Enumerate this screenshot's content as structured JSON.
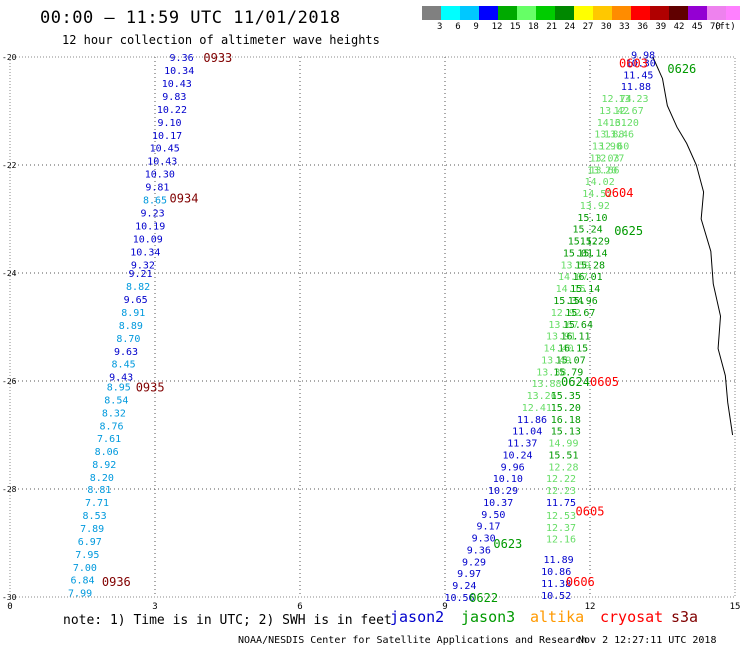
{
  "header": {
    "title": "00:00 — 11:59 UTC 11/01/2018",
    "subtitle": "12 hour collection of altimeter wave heights"
  },
  "colorbar": {
    "colors": [
      "#808080",
      "#00ffff",
      "#00c8ff",
      "#0000ff",
      "#00aa00",
      "#66ff66",
      "#00cc00",
      "#008800",
      "#ffff00",
      "#ffc800",
      "#ff8c00",
      "#ff0000",
      "#b00000",
      "#600000",
      "#9400d3",
      "#ee82ee",
      "#ff80ff",
      "#000000"
    ],
    "labels": [
      "3",
      "6",
      "9",
      "12",
      "15",
      "18",
      "21",
      "24",
      "27",
      "30",
      "33",
      "36",
      "39",
      "42",
      "45",
      "70"
    ],
    "unit": "(ft)"
  },
  "footer": {
    "note": "note: 1) Time is in UTC; 2) SWH is in feet",
    "credit": "NOAA/NESDIS Center for Satellite Applications and Research",
    "timestamp": "Nov  2 12:27:11 UTC 2018"
  },
  "legend": [
    {
      "name": "jason2",
      "color": "#0000cc"
    },
    {
      "name": "jason3",
      "color": "#009900"
    },
    {
      "name": "altika",
      "color": "#ff9900"
    },
    {
      "name": "cryosat",
      "color": "#ff0000"
    },
    {
      "name": "s3a",
      "color": "#800000"
    }
  ],
  "chart_data": {
    "type": "scatter",
    "xlim": [
      0,
      15
    ],
    "ylim": [
      -30,
      -20
    ],
    "xticks": [
      "0",
      "3",
      "6",
      "9",
      "12",
      "15"
    ],
    "yticks": [
      "-20",
      "-22",
      "-24",
      "-26",
      "-28",
      "-30"
    ],
    "grid": true,
    "tracks": [
      {
        "name": "s3a-west",
        "color": "#800000",
        "time_labels": [
          {
            "text": "0933",
            "x": 4.3,
            "y": -20.0
          },
          {
            "text": "0934",
            "x": 3.6,
            "y": -22.6
          },
          {
            "text": "0935",
            "x": 2.9,
            "y": -26.1
          },
          {
            "text": "0936",
            "x": 2.2,
            "y": -29.7
          }
        ],
        "points": [
          {
            "x": 3.55,
            "y": -20.0,
            "v": "9.36",
            "c": "#0000cc"
          },
          {
            "x": 3.5,
            "y": -20.24,
            "v": "10.34",
            "c": "#0000cc"
          },
          {
            "x": 3.45,
            "y": -20.48,
            "v": "10.43",
            "c": "#0000cc"
          },
          {
            "x": 3.4,
            "y": -20.72,
            "v": "9.83",
            "c": "#0000cc"
          },
          {
            "x": 3.35,
            "y": -20.96,
            "v": "10.22",
            "c": "#0000cc"
          },
          {
            "x": 3.3,
            "y": -21.2,
            "v": "9.10",
            "c": "#0000cc"
          },
          {
            "x": 3.25,
            "y": -21.44,
            "v": "10.17",
            "c": "#0000cc"
          },
          {
            "x": 3.2,
            "y": -21.68,
            "v": "10.45",
            "c": "#0000cc"
          },
          {
            "x": 3.15,
            "y": -21.92,
            "v": "10.43",
            "c": "#0000cc"
          },
          {
            "x": 3.1,
            "y": -22.16,
            "v": "10.30",
            "c": "#0000cc"
          },
          {
            "x": 3.05,
            "y": -22.4,
            "v": "9.81",
            "c": "#0000cc"
          },
          {
            "x": 3.0,
            "y": -22.64,
            "v": "8.65",
            "c": "#0099dd"
          },
          {
            "x": 2.95,
            "y": -22.88,
            "v": "9.23",
            "c": "#0000cc"
          },
          {
            "x": 2.9,
            "y": -23.12,
            "v": "10.19",
            "c": "#0000cc"
          },
          {
            "x": 2.85,
            "y": -23.36,
            "v": "10.09",
            "c": "#0000cc"
          },
          {
            "x": 2.8,
            "y": -23.6,
            "v": "10.34",
            "c": "#0000cc"
          },
          {
            "x": 2.75,
            "y": -23.84,
            "v": "9.32",
            "c": "#0000cc"
          },
          {
            "x": 2.7,
            "y": -24.0,
            "v": "9.21",
            "c": "#0000cc"
          },
          {
            "x": 2.65,
            "y": -24.24,
            "v": "8.82",
            "c": "#0099dd"
          },
          {
            "x": 2.6,
            "y": -24.48,
            "v": "9.65",
            "c": "#0000cc"
          },
          {
            "x": 2.55,
            "y": -24.72,
            "v": "8.91",
            "c": "#0099dd"
          },
          {
            "x": 2.5,
            "y": -24.96,
            "v": "8.89",
            "c": "#0099dd"
          },
          {
            "x": 2.45,
            "y": -25.2,
            "v": "8.70",
            "c": "#0099dd"
          },
          {
            "x": 2.4,
            "y": -25.44,
            "v": "9.63",
            "c": "#0000cc"
          },
          {
            "x": 2.35,
            "y": -25.68,
            "v": "8.45",
            "c": "#0099dd"
          },
          {
            "x": 2.3,
            "y": -25.92,
            "v": "9.43",
            "c": "#0000cc"
          },
          {
            "x": 2.25,
            "y": -26.1,
            "v": "8.95",
            "c": "#0099dd"
          },
          {
            "x": 2.2,
            "y": -26.34,
            "v": "8.54",
            "c": "#0099dd"
          },
          {
            "x": 2.15,
            "y": -26.58,
            "v": "8.32",
            "c": "#0099dd"
          },
          {
            "x": 2.1,
            "y": -26.82,
            "v": "8.76",
            "c": "#0099dd"
          },
          {
            "x": 2.05,
            "y": -27.06,
            "v": "7.61",
            "c": "#0099dd"
          },
          {
            "x": 2.0,
            "y": -27.3,
            "v": "8.06",
            "c": "#0099dd"
          },
          {
            "x": 1.95,
            "y": -27.54,
            "v": "8.92",
            "c": "#0099dd"
          },
          {
            "x": 1.9,
            "y": -27.78,
            "v": "8.20",
            "c": "#0099dd"
          },
          {
            "x": 1.85,
            "y": -28.0,
            "v": "8.81",
            "c": "#0099dd"
          },
          {
            "x": 1.8,
            "y": -28.24,
            "v": "7.71",
            "c": "#0099dd"
          },
          {
            "x": 1.75,
            "y": -28.48,
            "v": "8.53",
            "c": "#0099dd"
          },
          {
            "x": 1.7,
            "y": -28.72,
            "v": "7.89",
            "c": "#0099dd"
          },
          {
            "x": 1.65,
            "y": -28.96,
            "v": "6.97",
            "c": "#0099dd"
          },
          {
            "x": 1.6,
            "y": -29.2,
            "v": "7.95",
            "c": "#0099dd"
          },
          {
            "x": 1.55,
            "y": -29.44,
            "v": "7.00",
            "c": "#0099dd"
          },
          {
            "x": 1.5,
            "y": -29.68,
            "v": "6.84",
            "c": "#0099dd"
          },
          {
            "x": 1.45,
            "y": -29.92,
            "v": "7.99",
            "c": "#0099dd"
          }
        ]
      },
      {
        "name": "jason3-east",
        "color": "#009900",
        "time_labels": [
          {
            "text": "0622",
            "x": 9.8,
            "y": -30.0
          },
          {
            "text": "0623",
            "x": 10.3,
            "y": -29.0
          },
          {
            "text": "0624",
            "x": 11.7,
            "y": -26.0
          },
          {
            "text": "0625",
            "x": 12.8,
            "y": -23.2
          },
          {
            "text": "0626",
            "x": 13.9,
            "y": -20.2
          }
        ],
        "points": [
          {
            "x": 9.3,
            "y": -30.0,
            "v": "10.56",
            "c": "#0000cc"
          },
          {
            "x": 9.4,
            "y": -29.78,
            "v": "9.24",
            "c": "#0000cc"
          },
          {
            "x": 9.5,
            "y": -29.56,
            "v": "9.97",
            "c": "#0000cc"
          },
          {
            "x": 9.6,
            "y": -29.34,
            "v": "9.29",
            "c": "#0000cc"
          },
          {
            "x": 9.7,
            "y": -29.12,
            "v": "9.36",
            "c": "#0000cc"
          },
          {
            "x": 9.8,
            "y": -28.9,
            "v": "9.30",
            "c": "#0000cc"
          },
          {
            "x": 9.9,
            "y": -28.68,
            "v": "9.17",
            "c": "#0000cc"
          },
          {
            "x": 10.0,
            "y": -28.46,
            "v": "9.50",
            "c": "#0000cc"
          },
          {
            "x": 10.1,
            "y": -28.24,
            "v": "10.37",
            "c": "#0000cc"
          },
          {
            "x": 10.2,
            "y": -28.02,
            "v": "10.29",
            "c": "#0000cc"
          },
          {
            "x": 10.3,
            "y": -27.8,
            "v": "10.10",
            "c": "#0000cc"
          },
          {
            "x": 10.4,
            "y": -27.58,
            "v": "9.96",
            "c": "#0000cc"
          },
          {
            "x": 10.5,
            "y": -27.36,
            "v": "10.24",
            "c": "#0000cc"
          },
          {
            "x": 10.6,
            "y": -27.14,
            "v": "11.37",
            "c": "#0000cc"
          },
          {
            "x": 10.7,
            "y": -26.92,
            "v": "11.04",
            "c": "#0000cc"
          },
          {
            "x": 10.8,
            "y": -26.7,
            "v": "11.86",
            "c": "#0000cc"
          },
          {
            "x": 10.9,
            "y": -26.48,
            "v": "12.41",
            "c": "#66dd66"
          },
          {
            "x": 11.0,
            "y": -26.26,
            "v": "13.26",
            "c": "#66dd66"
          },
          {
            "x": 11.1,
            "y": -26.04,
            "v": "13.88",
            "c": "#66dd66"
          },
          {
            "x": 11.2,
            "y": -25.82,
            "v": "13.38",
            "c": "#66dd66"
          },
          {
            "x": 11.3,
            "y": -25.6,
            "v": "13.49",
            "c": "#66dd66"
          },
          {
            "x": 11.35,
            "y": -25.38,
            "v": "14.40",
            "c": "#66dd66"
          },
          {
            "x": 11.4,
            "y": -25.16,
            "v": "13.91",
            "c": "#66dd66"
          },
          {
            "x": 11.45,
            "y": -24.94,
            "v": "13.67",
            "c": "#66dd66"
          },
          {
            "x": 11.5,
            "y": -24.72,
            "v": "12.92",
            "c": "#66dd66"
          },
          {
            "x": 11.55,
            "y": -24.5,
            "v": "15.34",
            "c": "#009900"
          },
          {
            "x": 11.6,
            "y": -24.28,
            "v": "14.15",
            "c": "#66dd66"
          },
          {
            "x": 11.65,
            "y": -24.06,
            "v": "14.07",
            "c": "#66dd66"
          },
          {
            "x": 11.7,
            "y": -23.84,
            "v": "13.59",
            "c": "#66dd66"
          },
          {
            "x": 11.75,
            "y": -23.62,
            "v": "15.01",
            "c": "#009900"
          },
          {
            "x": 11.85,
            "y": -23.4,
            "v": "15.12",
            "c": "#009900"
          },
          {
            "x": 11.95,
            "y": -23.18,
            "v": "15.24",
            "c": "#009900"
          },
          {
            "x": 12.05,
            "y": -22.96,
            "v": "15.10",
            "c": "#009900"
          },
          {
            "x": 12.1,
            "y": -22.74,
            "v": "13.92",
            "c": "#66dd66"
          },
          {
            "x": 12.15,
            "y": -22.52,
            "v": "14.52",
            "c": "#66dd66"
          },
          {
            "x": 12.2,
            "y": -22.3,
            "v": "14.02",
            "c": "#66dd66"
          },
          {
            "x": 12.25,
            "y": -22.08,
            "v": "13.20",
            "c": "#66dd66"
          },
          {
            "x": 12.3,
            "y": -21.86,
            "v": "13.03",
            "c": "#66dd66"
          },
          {
            "x": 12.35,
            "y": -21.64,
            "v": "13.90",
            "c": "#66dd66"
          },
          {
            "x": 12.4,
            "y": -21.42,
            "v": "13.88",
            "c": "#66dd66"
          },
          {
            "x": 12.45,
            "y": -21.2,
            "v": "14.61",
            "c": "#66dd66"
          },
          {
            "x": 12.5,
            "y": -20.98,
            "v": "13.42",
            "c": "#66dd66"
          },
          {
            "x": 12.55,
            "y": -20.76,
            "v": "12.74",
            "c": "#66dd66"
          }
        ]
      },
      {
        "name": "cryosat-east",
        "color": "#ff0000",
        "time_labels": [
          {
            "text": "0603",
            "x": 12.9,
            "y": -20.1
          },
          {
            "text": "0604",
            "x": 12.6,
            "y": -22.5
          },
          {
            "text": "0605",
            "x": 12.3,
            "y": -26.0
          },
          {
            "text": "0605",
            "x": 12.0,
            "y": -28.4
          },
          {
            "text": "0606",
            "x": 11.8,
            "y": -29.7
          }
        ],
        "points": [
          {
            "x": 11.3,
            "y": -29.96,
            "v": "10.52",
            "c": "#0000cc"
          },
          {
            "x": 11.3,
            "y": -29.74,
            "v": "11.38",
            "c": "#0000cc"
          },
          {
            "x": 11.3,
            "y": -29.52,
            "v": "10.86",
            "c": "#0000cc"
          },
          {
            "x": 11.35,
            "y": -29.3,
            "v": "11.89",
            "c": "#0000cc"
          },
          {
            "x": 11.4,
            "y": -28.92,
            "v": "12.16",
            "c": "#66dd66"
          },
          {
            "x": 11.4,
            "y": -28.7,
            "v": "12.37",
            "c": "#66dd66"
          },
          {
            "x": 11.4,
            "y": -28.48,
            "v": "12.53",
            "c": "#66dd66"
          },
          {
            "x": 11.4,
            "y": -28.24,
            "v": "11.75",
            "c": "#0000cc"
          },
          {
            "x": 11.4,
            "y": -28.02,
            "v": "12.23",
            "c": "#66dd66"
          },
          {
            "x": 11.4,
            "y": -27.8,
            "v": "12.22",
            "c": "#66dd66"
          },
          {
            "x": 11.45,
            "y": -27.58,
            "v": "12.28",
            "c": "#66dd66"
          },
          {
            "x": 11.45,
            "y": -27.36,
            "v": "15.51",
            "c": "#009900"
          },
          {
            "x": 11.45,
            "y": -27.14,
            "v": "14.99",
            "c": "#66dd66"
          },
          {
            "x": 11.5,
            "y": -26.92,
            "v": "15.13",
            "c": "#009900"
          },
          {
            "x": 11.5,
            "y": -26.7,
            "v": "16.18",
            "c": "#009900"
          },
          {
            "x": 11.5,
            "y": -26.48,
            "v": "15.20",
            "c": "#009900"
          },
          {
            "x": 11.5,
            "y": -26.26,
            "v": "15.35",
            "c": "#009900"
          },
          {
            "x": 11.55,
            "y": -25.82,
            "v": "15.79",
            "c": "#009900"
          },
          {
            "x": 11.6,
            "y": -25.6,
            "v": "15.07",
            "c": "#009900"
          },
          {
            "x": 11.65,
            "y": -25.38,
            "v": "16.15",
            "c": "#009900"
          },
          {
            "x": 11.7,
            "y": -25.16,
            "v": "16.11",
            "c": "#009900"
          },
          {
            "x": 11.75,
            "y": -24.94,
            "v": "15.64",
            "c": "#009900"
          },
          {
            "x": 11.8,
            "y": -24.72,
            "v": "15.67",
            "c": "#009900"
          },
          {
            "x": 11.85,
            "y": -24.5,
            "v": "15.96",
            "c": "#009900"
          },
          {
            "x": 11.9,
            "y": -24.28,
            "v": "15.14",
            "c": "#009900"
          },
          {
            "x": 11.95,
            "y": -24.06,
            "v": "16.01",
            "c": "#009900"
          },
          {
            "x": 12.0,
            "y": -23.84,
            "v": "15.28",
            "c": "#009900"
          },
          {
            "x": 12.05,
            "y": -23.62,
            "v": "15.14",
            "c": "#009900"
          },
          {
            "x": 12.1,
            "y": -23.4,
            "v": "15.29",
            "c": "#009900"
          },
          {
            "x": 12.3,
            "y": -22.08,
            "v": "13.66",
            "c": "#66dd66"
          },
          {
            "x": 12.4,
            "y": -21.86,
            "v": "12.77",
            "c": "#66dd66"
          },
          {
            "x": 12.5,
            "y": -21.64,
            "v": "12.60",
            "c": "#66dd66"
          },
          {
            "x": 12.6,
            "y": -21.42,
            "v": "13.46",
            "c": "#66dd66"
          },
          {
            "x": 12.7,
            "y": -21.2,
            "v": "13.20",
            "c": "#66dd66"
          },
          {
            "x": 12.8,
            "y": -20.98,
            "v": "12.67",
            "c": "#66dd66"
          },
          {
            "x": 12.9,
            "y": -20.76,
            "v": "13.23",
            "c": "#66dd66"
          },
          {
            "x": 12.95,
            "y": -20.54,
            "v": "11.88",
            "c": "#0000cc"
          },
          {
            "x": 13.0,
            "y": -20.32,
            "v": "11.45",
            "c": "#0000cc"
          },
          {
            "x": 13.05,
            "y": -20.1,
            "v": "10.30",
            "c": "#0000cc"
          },
          {
            "x": 13.1,
            "y": -19.95,
            "v": "9.98",
            "c": "#0000cc"
          }
        ]
      }
    ]
  }
}
